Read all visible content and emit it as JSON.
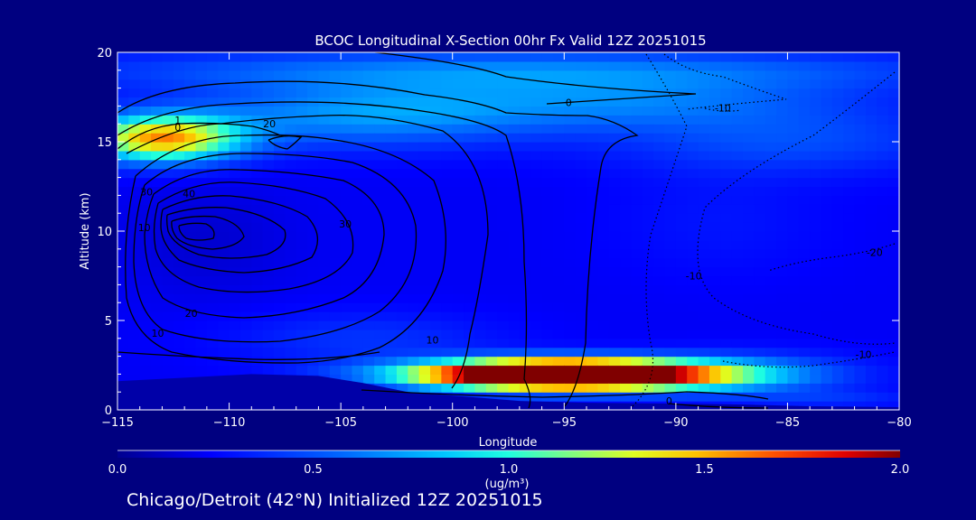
{
  "colors": {
    "background": "#000080",
    "text": "#ffffff",
    "contour": "#000000"
  },
  "chart_data": {
    "type": "heatmap",
    "title": "BCOC Longitudinal X-Section 00hr  Fx Valid 12Z 20251015",
    "xlabel": "Longitude",
    "ylabel": "Altitude (km)",
    "xlim": [
      -115,
      -80
    ],
    "ylim": [
      0,
      20
    ],
    "x_ticks": [
      -115,
      -110,
      -105,
      -100,
      -95,
      -90,
      -85,
      -80
    ],
    "x_tick_labels": [
      "−115",
      "−110",
      "−105",
      "−100",
      "−95",
      "−90",
      "−85",
      "−80"
    ],
    "y_ticks": [
      0,
      5,
      10,
      15,
      20
    ],
    "y_tick_labels": [
      "0",
      "5",
      "10",
      "15",
      "20"
    ],
    "colorbar": {
      "min": 0.0,
      "max": 2.0,
      "ticks": [
        0.0,
        0.5,
        1.0,
        1.5,
        2.0
      ],
      "tick_labels": [
        "0.0",
        "0.5",
        "1.0",
        "1.5",
        "2.0"
      ],
      "label": "(ug/m³)"
    },
    "contour_labels": [
      {
        "text": "1",
        "lon": -112.3,
        "alt": 16.0
      },
      {
        "text": "0",
        "lon": -112.3,
        "alt": 15.6
      },
      {
        "text": "20",
        "lon": -108.2,
        "alt": 15.8
      },
      {
        "text": "30",
        "lon": -113.7,
        "alt": 12.0
      },
      {
        "text": "40",
        "lon": -111.8,
        "alt": 11.9
      },
      {
        "text": "10",
        "lon": -113.8,
        "alt": 10.0
      },
      {
        "text": "30",
        "lon": -104.8,
        "alt": 10.2
      },
      {
        "text": "20",
        "lon": -111.7,
        "alt": 5.2
      },
      {
        "text": "10",
        "lon": -113.2,
        "alt": 4.1
      },
      {
        "text": "10",
        "lon": -100.9,
        "alt": 3.7
      },
      {
        "text": "0",
        "lon": -94.8,
        "alt": 17.0
      },
      {
        "text": "-10",
        "lon": -87.9,
        "alt": 16.7
      },
      {
        "text": "-10",
        "lon": -89.2,
        "alt": 7.3
      },
      {
        "text": "-20",
        "lon": -81.1,
        "alt": 8.6
      },
      {
        "text": "-10",
        "lon": -81.6,
        "alt": 2.9
      },
      {
        "text": "0",
        "lon": -90.3,
        "alt": 0.3
      }
    ],
    "field": {
      "base": 0.22,
      "blobs": [
        {
          "lon": -113,
          "alt": 15.2,
          "sx": 3.5,
          "sy": 1.3,
          "v": 1.3
        },
        {
          "lon": -104,
          "alt": 16.5,
          "sx": 8.0,
          "sy": 1.8,
          "v": 0.45
        },
        {
          "lon": -92,
          "alt": 17.2,
          "sx": 10.0,
          "sy": 1.5,
          "v": 0.35
        },
        {
          "lon": -85,
          "alt": 15.0,
          "sx": 8.0,
          "sy": 1.8,
          "v": 0.25
        },
        {
          "lon": -97,
          "alt": 19.0,
          "sx": 20.0,
          "sy": 1.2,
          "v": 0.4
        },
        {
          "lon": -111,
          "alt": 9.5,
          "sx": 3.5,
          "sy": 3.0,
          "v": -0.08
        },
        {
          "lon": -88,
          "alt": 10.5,
          "sx": 5.0,
          "sy": 3.0,
          "v": 0.08
        },
        {
          "lon": -104,
          "alt": 4.0,
          "sx": 6.0,
          "sy": 1.5,
          "v": 0.18
        },
        {
          "lon": -95,
          "alt": 2.0,
          "sx": 6.5,
          "sy": 0.8,
          "v": 3.0
        },
        {
          "lon": -87,
          "alt": 2.0,
          "sx": 5.0,
          "sy": 1.2,
          "v": 0.35
        },
        {
          "lon": -83,
          "alt": 0.6,
          "sx": 4.0,
          "sy": 0.5,
          "v": 0.15
        }
      ]
    }
  },
  "footer": "Chicago/Detroit (42°N) Initialized 12Z 20251015"
}
